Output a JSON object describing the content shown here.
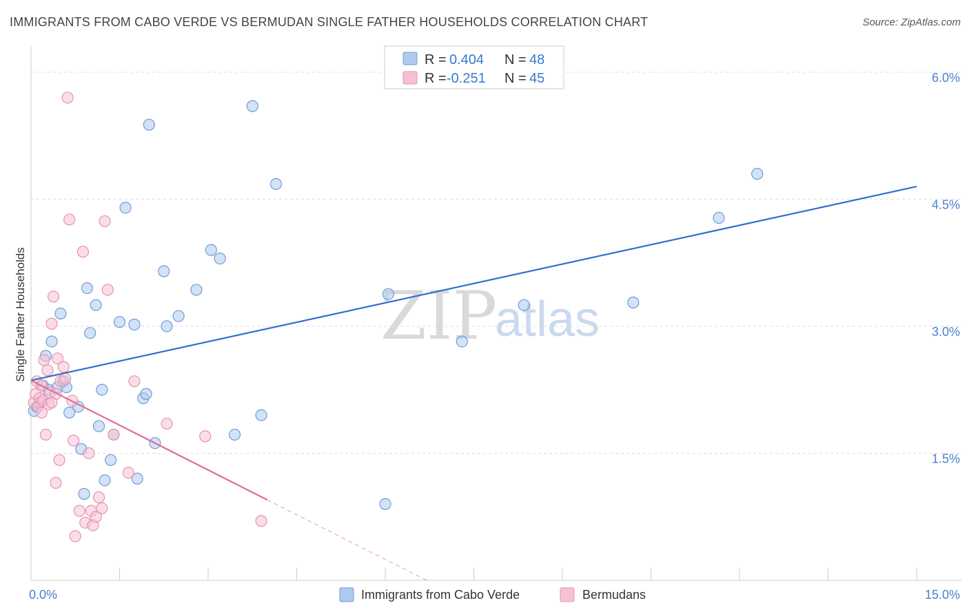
{
  "title": "IMMIGRANTS FROM CABO VERDE VS BERMUDAN SINGLE FATHER HOUSEHOLDS CORRELATION CHART",
  "source": "Source: ZipAtlas.com",
  "watermark": {
    "zip": "ZIP",
    "atlas": "atlas"
  },
  "colors": {
    "blue_fill": "#aecbef",
    "blue_stroke": "#6f9bd8",
    "blue_line": "#2f6fcc",
    "pink_fill": "#f6c2d3",
    "pink_stroke": "#e890ae",
    "pink_line": "#e06a94",
    "grid": "#dddddd",
    "tick_label": "#4a7fd0"
  },
  "legend": {
    "r_label": "R =",
    "n_label": "N =",
    "blue": {
      "r": "0.404",
      "n": "48"
    },
    "pink": {
      "r": "-0.251",
      "n": "45"
    }
  },
  "chart_data": {
    "type": "scatter",
    "title": "IMMIGRANTS FROM CABO VERDE VS BERMUDAN SINGLE FATHER HOUSEHOLDS CORRELATION CHART",
    "xlabel": "",
    "ylabel": "Single Father Households",
    "xlim": [
      0,
      15
    ],
    "ylim": [
      0,
      6.3
    ],
    "x_tick_labels": [
      {
        "value": 0,
        "label": "0.0%"
      },
      {
        "value": 15,
        "label": "15.0%"
      }
    ],
    "y_tick_labels": [
      {
        "value": 1.5,
        "label": "1.5%"
      },
      {
        "value": 3.0,
        "label": "3.0%"
      },
      {
        "value": 4.5,
        "label": "4.5%"
      },
      {
        "value": 6.0,
        "label": "6.0%"
      }
    ],
    "series": [
      {
        "name": "Immigrants from Cabo Verde",
        "color": "blue",
        "points": [
          [
            0.05,
            2.0
          ],
          [
            0.1,
            2.05
          ],
          [
            0.15,
            2.1
          ],
          [
            0.2,
            2.3
          ],
          [
            0.25,
            2.65
          ],
          [
            0.3,
            2.25
          ],
          [
            0.35,
            2.82
          ],
          [
            0.45,
            2.28
          ],
          [
            0.5,
            3.15
          ],
          [
            0.55,
            2.35
          ],
          [
            0.6,
            2.28
          ],
          [
            0.65,
            1.98
          ],
          [
            0.8,
            2.05
          ],
          [
            0.85,
            1.55
          ],
          [
            0.9,
            1.02
          ],
          [
            0.95,
            3.45
          ],
          [
            1.0,
            2.92
          ],
          [
            1.1,
            3.25
          ],
          [
            1.15,
            1.82
          ],
          [
            1.2,
            2.25
          ],
          [
            1.25,
            1.18
          ],
          [
            1.35,
            1.42
          ],
          [
            1.4,
            1.72
          ],
          [
            1.5,
            3.05
          ],
          [
            1.6,
            4.4
          ],
          [
            1.75,
            3.02
          ],
          [
            1.8,
            1.2
          ],
          [
            1.9,
            2.15
          ],
          [
            1.95,
            2.2
          ],
          [
            2.0,
            5.38
          ],
          [
            2.1,
            1.62
          ],
          [
            2.25,
            3.65
          ],
          [
            2.3,
            3.0
          ],
          [
            2.5,
            3.12
          ],
          [
            2.8,
            3.43
          ],
          [
            3.05,
            3.9
          ],
          [
            3.2,
            3.8
          ],
          [
            3.45,
            1.72
          ],
          [
            3.75,
            5.6
          ],
          [
            3.9,
            1.95
          ],
          [
            4.15,
            4.68
          ],
          [
            6.0,
            0.9
          ],
          [
            6.05,
            3.38
          ],
          [
            7.3,
            2.82
          ],
          [
            8.35,
            3.25
          ],
          [
            10.2,
            3.28
          ],
          [
            11.65,
            4.28
          ],
          [
            12.3,
            4.8
          ]
        ],
        "trend": {
          "x1": 0,
          "y1": 2.36,
          "x2": 15,
          "y2": 4.65
        }
      },
      {
        "name": "Bermudans",
        "color": "pink",
        "points": [
          [
            0.05,
            2.1
          ],
          [
            0.08,
            2.2
          ],
          [
            0.1,
            2.35
          ],
          [
            0.12,
            2.05
          ],
          [
            0.15,
            2.15
          ],
          [
            0.18,
            2.3
          ],
          [
            0.2,
            2.12
          ],
          [
            0.22,
            2.6
          ],
          [
            0.25,
            1.72
          ],
          [
            0.28,
            2.48
          ],
          [
            0.3,
            2.08
          ],
          [
            0.32,
            2.22
          ],
          [
            0.35,
            3.03
          ],
          [
            0.38,
            3.35
          ],
          [
            0.42,
            1.15
          ],
          [
            0.45,
            2.62
          ],
          [
            0.48,
            1.42
          ],
          [
            0.5,
            2.35
          ],
          [
            0.55,
            2.52
          ],
          [
            0.58,
            2.38
          ],
          [
            0.62,
            5.7
          ],
          [
            0.65,
            4.26
          ],
          [
            0.7,
            2.12
          ],
          [
            0.72,
            1.65
          ],
          [
            0.75,
            0.52
          ],
          [
            0.82,
            0.82
          ],
          [
            0.88,
            3.88
          ],
          [
            0.92,
            0.68
          ],
          [
            0.98,
            1.5
          ],
          [
            1.02,
            0.82
          ],
          [
            1.05,
            0.65
          ],
          [
            1.1,
            0.75
          ],
          [
            1.15,
            0.98
          ],
          [
            1.2,
            0.85
          ],
          [
            1.25,
            4.24
          ],
          [
            1.3,
            3.43
          ],
          [
            1.4,
            1.72
          ],
          [
            1.65,
            1.27
          ],
          [
            1.75,
            2.35
          ],
          [
            2.3,
            1.85
          ],
          [
            2.95,
            1.7
          ],
          [
            3.9,
            0.7
          ],
          [
            0.42,
            2.2
          ],
          [
            0.18,
            1.98
          ],
          [
            0.35,
            2.1
          ]
        ],
        "trend": {
          "x1": 0,
          "y1": 2.36,
          "x2": 4.0,
          "y2": 0.95
        },
        "trend_dashed": {
          "x1": 4.0,
          "y1": 0.95,
          "x2": 6.7,
          "y2": 0.0
        }
      }
    ]
  }
}
